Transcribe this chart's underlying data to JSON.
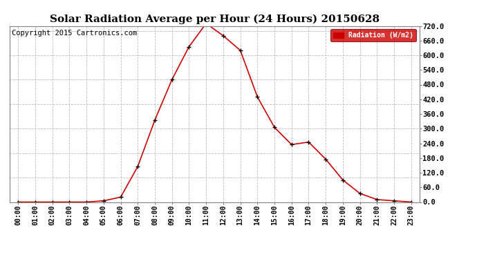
{
  "title": "Solar Radiation Average per Hour (24 Hours) 20150628",
  "copyright": "Copyright 2015 Cartronics.com",
  "legend_label": "Radiation (W/m2)",
  "hours": [
    "00:00",
    "01:00",
    "02:00",
    "03:00",
    "04:00",
    "05:00",
    "06:00",
    "07:00",
    "08:00",
    "09:00",
    "10:00",
    "11:00",
    "12:00",
    "13:00",
    "14:00",
    "15:00",
    "16:00",
    "17:00",
    "18:00",
    "19:00",
    "20:00",
    "21:00",
    "22:00",
    "23:00"
  ],
  "values": [
    0,
    0,
    0,
    0,
    0,
    5,
    20,
    145,
    335,
    500,
    635,
    730,
    680,
    620,
    430,
    305,
    235,
    245,
    175,
    90,
    35,
    10,
    5,
    0
  ],
  "line_color": "#cc0000",
  "marker_color": "#000000",
  "background_color": "#ffffff",
  "grid_color": "#bbbbbb",
  "ylim_min": 0.0,
  "ylim_max": 720.0,
  "ytick_interval": 60.0,
  "legend_bg": "#cc0000",
  "legend_text_color": "#ffffff",
  "title_fontsize": 11,
  "copyright_fontsize": 7.5,
  "tick_fontsize": 7,
  "ytick_fontsize": 7.5
}
